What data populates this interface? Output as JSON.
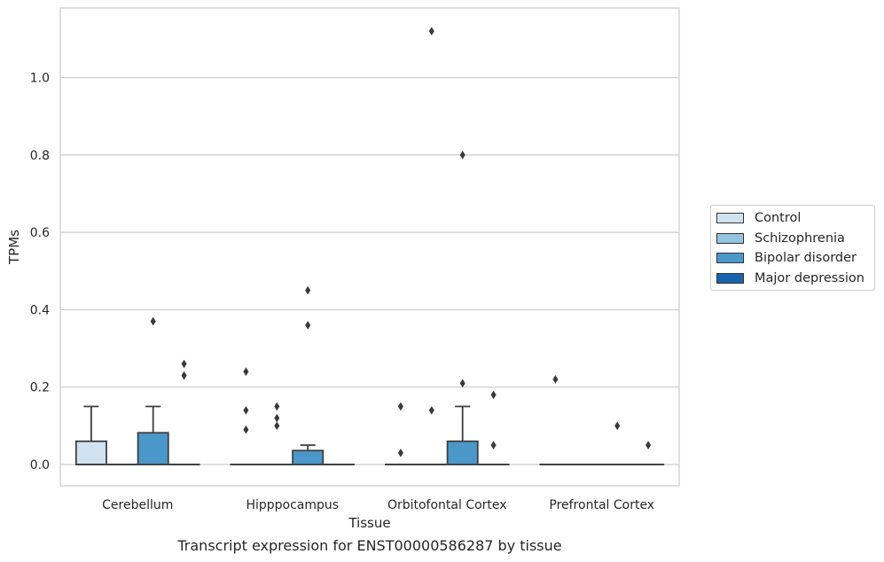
{
  "chart_data": {
    "type": "box",
    "caption": "Transcript expression for ENST00000586287 by tissue",
    "xlabel": "Tissue",
    "ylabel": "TPMs",
    "ylim": [
      -0.055,
      1.18
    ],
    "yticks": [
      "0.0",
      "0.2",
      "0.4",
      "0.6",
      "0.8",
      "1.0"
    ],
    "ytick_values": [
      0.0,
      0.2,
      0.4,
      0.6,
      0.8,
      1.0
    ],
    "grid": true,
    "legend_position": "right",
    "categories": [
      "Cerebellum",
      "Hipppocampus",
      "Orbitofontal Cortex",
      "Prefrontal Cortex"
    ],
    "series": [
      {
        "name": "Control",
        "color": "#d0e1f2",
        "boxes": [
          {
            "q1": 0.0,
            "median": 0.0,
            "q3": 0.06,
            "whisker_low": 0.0,
            "whisker_high": 0.15,
            "outliers": []
          },
          {
            "q1": 0.0,
            "median": 0.0,
            "q3": 0.0,
            "whisker_low": 0.0,
            "whisker_high": 0.0,
            "outliers": [
              0.09,
              0.14,
              0.24
            ]
          },
          {
            "q1": 0.0,
            "median": 0.0,
            "q3": 0.0,
            "whisker_low": 0.0,
            "whisker_high": 0.0,
            "outliers": [
              0.03,
              0.15
            ]
          },
          {
            "q1": 0.0,
            "median": 0.0,
            "q3": 0.0,
            "whisker_low": 0.0,
            "whisker_high": 0.0,
            "outliers": [
              0.22
            ]
          }
        ]
      },
      {
        "name": "Schizophrenia",
        "color": "#94c4df",
        "boxes": [
          {
            "q1": 0.0,
            "median": 0.0,
            "q3": 0.0,
            "whisker_low": 0.0,
            "whisker_high": 0.0,
            "outliers": []
          },
          {
            "q1": 0.0,
            "median": 0.0,
            "q3": 0.0,
            "whisker_low": 0.0,
            "whisker_high": 0.0,
            "outliers": [
              0.1,
              0.12,
              0.15
            ]
          },
          {
            "q1": 0.0,
            "median": 0.0,
            "q3": 0.0,
            "whisker_low": 0.0,
            "whisker_high": 0.0,
            "outliers": [
              0.14,
              1.12
            ]
          },
          {
            "q1": 0.0,
            "median": 0.0,
            "q3": 0.0,
            "whisker_low": 0.0,
            "whisker_high": 0.0,
            "outliers": []
          }
        ]
      },
      {
        "name": "Bipolar disorder",
        "color": "#4a98c9",
        "boxes": [
          {
            "q1": 0.0,
            "median": 0.0,
            "q3": 0.082,
            "whisker_low": 0.0,
            "whisker_high": 0.15,
            "outliers": [
              0.37
            ]
          },
          {
            "q1": 0.0,
            "median": 0.0,
            "q3": 0.036,
            "whisker_low": 0.0,
            "whisker_high": 0.05,
            "outliers": [
              0.36,
              0.45
            ]
          },
          {
            "q1": 0.0,
            "median": 0.0,
            "q3": 0.06,
            "whisker_low": 0.0,
            "whisker_high": 0.15,
            "outliers": [
              0.21,
              0.8
            ]
          },
          {
            "q1": 0.0,
            "median": 0.0,
            "q3": 0.0,
            "whisker_low": 0.0,
            "whisker_high": 0.0,
            "outliers": [
              0.1
            ]
          }
        ]
      },
      {
        "name": "Major depression",
        "color": "#1764ab",
        "boxes": [
          {
            "q1": 0.0,
            "median": 0.0,
            "q3": 0.0,
            "whisker_low": 0.0,
            "whisker_high": 0.0,
            "outliers": [
              0.23,
              0.26
            ]
          },
          {
            "q1": 0.0,
            "median": 0.0,
            "q3": 0.0,
            "whisker_low": 0.0,
            "whisker_high": 0.0,
            "outliers": []
          },
          {
            "q1": 0.0,
            "median": 0.0,
            "q3": 0.0,
            "whisker_low": 0.0,
            "whisker_high": 0.0,
            "outliers": [
              0.05,
              0.18
            ]
          },
          {
            "q1": 0.0,
            "median": 0.0,
            "q3": 0.0,
            "whisker_low": 0.0,
            "whisker_high": 0.0,
            "outliers": [
              0.05
            ]
          }
        ]
      }
    ]
  }
}
